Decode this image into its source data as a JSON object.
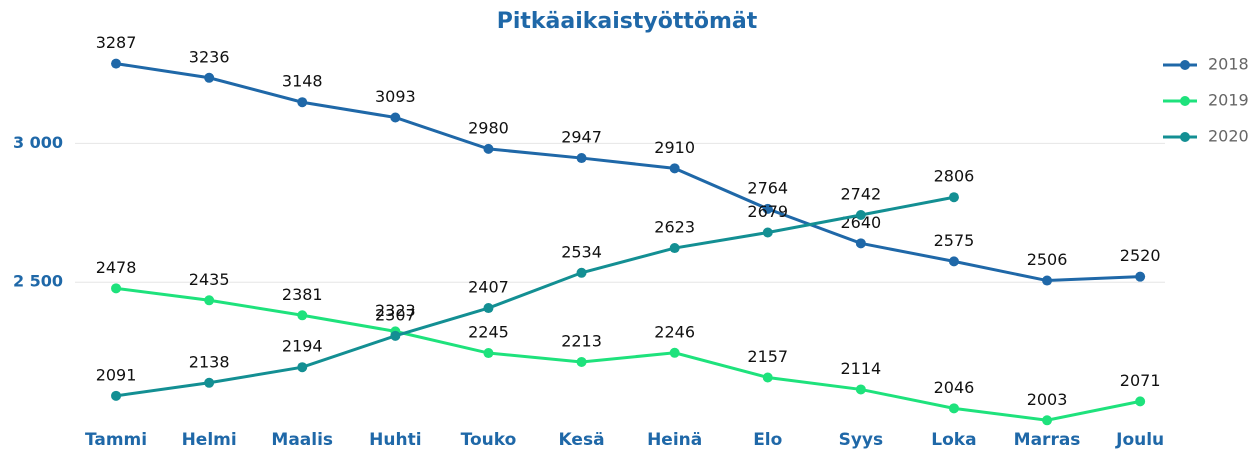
{
  "chart_data": {
    "type": "line",
    "title": "Pitkäaikaistyöttömät",
    "categories": [
      "Tammi",
      "Helmi",
      "Maalis",
      "Huhti",
      "Touko",
      "Kesä",
      "Heinä",
      "Elo",
      "Syys",
      "Loka",
      "Marras",
      "Joulu"
    ],
    "series": [
      {
        "name": "2018",
        "color": "#1f68a8",
        "values": [
          3287,
          3236,
          3148,
          3093,
          2980,
          2947,
          2910,
          2764,
          2640,
          2575,
          2506,
          2520
        ]
      },
      {
        "name": "2019",
        "color": "#1ee27c",
        "values": [
          2478,
          2435,
          2381,
          2323,
          2245,
          2213,
          2246,
          2157,
          2114,
          2046,
          2003,
          2071
        ]
      },
      {
        "name": "2020",
        "color": "#138f93",
        "values": [
          2091,
          2138,
          2194,
          2307,
          2407,
          2534,
          2623,
          2679,
          2742,
          2806,
          null,
          null
        ]
      }
    ],
    "ylim": [
      1950,
      3300
    ],
    "yticks": [
      {
        "value": 2500,
        "label": "2 500"
      },
      {
        "value": 3000,
        "label": "3 000"
      }
    ],
    "grid": true,
    "legend": "top-right"
  }
}
